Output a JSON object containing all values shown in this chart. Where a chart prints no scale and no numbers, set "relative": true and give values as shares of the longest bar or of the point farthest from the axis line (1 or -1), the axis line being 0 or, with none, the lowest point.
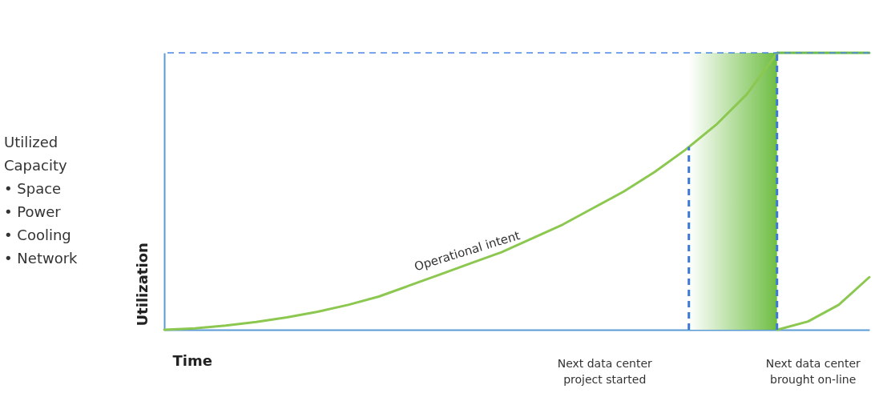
{
  "chart_data": {
    "type": "line",
    "relative": true,
    "xlabel": "Time",
    "ylabel": "Utilization",
    "categories": [
      null,
      null,
      null,
      null,
      null,
      null,
      null,
      null,
      null,
      null,
      null,
      null,
      null,
      null,
      null,
      null,
      null,
      null,
      null,
      null,
      null,
      null,
      null,
      null
    ],
    "series": [
      {
        "name": "Operational intent",
        "color": "#8cc850",
        "values": [
          0,
          0.005,
          0.015,
          0.028,
          0.045,
          0.065,
          0.09,
          0.12,
          0.16,
          0.2,
          0.24,
          0.28,
          0.33,
          0.38,
          0.44,
          0.5,
          0.57,
          0.65,
          0.74,
          0.85,
          1,
          null,
          null,
          null
        ]
      },
      {
        "color": "#6fbe44",
        "values": [
          null,
          null,
          null,
          null,
          null,
          null,
          null,
          null,
          null,
          null,
          null,
          null,
          null,
          null,
          null,
          null,
          null,
          null,
          null,
          null,
          1,
          1,
          1,
          1
        ]
      },
      {
        "color": "#8cc850",
        "values": [
          null,
          null,
          null,
          null,
          null,
          null,
          null,
          null,
          null,
          null,
          null,
          null,
          null,
          null,
          null,
          null,
          null,
          null,
          null,
          null,
          0,
          0.03,
          0.09,
          0.19
        ]
      }
    ],
    "ref_lines": [
      {
        "axis": "y",
        "value": 1,
        "color": "#4a86e8",
        "line_style": "dashed"
      }
    ],
    "annotations": [
      "Utilized\nCapacity\n•     Space\n•     Power\n•     Cooling\n•     Network",
      "Next data center\nproject started",
      "Next data center\nbrought on-line"
    ],
    "grid": false,
    "marker": "none",
    "line_style": "solid"
  }
}
